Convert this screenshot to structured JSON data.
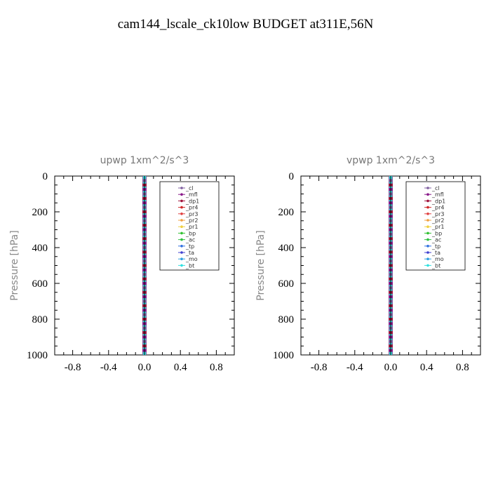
{
  "figure": {
    "title": "cam144_lscale_ck10low  BUDGET at311E,56N"
  },
  "chart_data": [
    {
      "type": "line",
      "title": "upwp   1xm^2/s^3",
      "xlabel": "",
      "ylabel": "Pressure [hPa]",
      "xlim": [
        -1.0,
        1.0
      ],
      "ylim": [
        1000,
        0
      ],
      "y_inverted": true,
      "xticks": [
        "-0.8",
        "-0.4",
        "0.0",
        "0.4",
        "0.8"
      ],
      "xtick_values": [
        -0.8,
        -0.4,
        0.0,
        0.4,
        0.8
      ],
      "yticks": [
        "0",
        "200",
        "400",
        "600",
        "800",
        "1000"
      ],
      "ytick_values": [
        0,
        200,
        400,
        600,
        800,
        1000
      ],
      "grid": false,
      "legend_position": "top-right",
      "pressure_levels": [
        0,
        25,
        50,
        75,
        100,
        125,
        150,
        175,
        200,
        225,
        250,
        275,
        300,
        325,
        350,
        375,
        400,
        425,
        450,
        475,
        500,
        525,
        550,
        575,
        600,
        625,
        650,
        675,
        700,
        725,
        750,
        775,
        800,
        825,
        850,
        875,
        900,
        925,
        950,
        975,
        1000
      ],
      "series": [
        {
          "name": "_cl",
          "color": "#7f5fa0",
          "marker": "cross",
          "value": 0.0
        },
        {
          "name": "_mfl",
          "color": "#8a1a8a",
          "marker": "triangle-right",
          "value": 0.0
        },
        {
          "name": "_dp1",
          "color": "#a0143c",
          "marker": "circle-filled",
          "value": 0.0
        },
        {
          "name": "_pr4",
          "color": "#d02828",
          "marker": "circle",
          "value": 0.0
        },
        {
          "name": "_pr3",
          "color": "#e04040",
          "marker": "triangle-down",
          "value": 0.0
        },
        {
          "name": "_pr2",
          "color": "#f0a040",
          "marker": "triangle",
          "value": 0.0
        },
        {
          "name": "_pr1",
          "color": "#f0d040",
          "marker": "square",
          "value": 0.0
        },
        {
          "name": "_bp",
          "color": "#30c030",
          "marker": "x",
          "value": 0.0
        },
        {
          "name": "_ac",
          "color": "#30c040",
          "marker": "circle",
          "value": 0.0
        },
        {
          "name": "_tp",
          "color": "#3070e0",
          "marker": "star",
          "value": 0.0
        },
        {
          "name": "_ta",
          "color": "#4040d0",
          "marker": "triangle-right",
          "value": 0.0
        },
        {
          "name": "_mo",
          "color": "#30a0e0",
          "marker": "dash",
          "value": 0.0
        },
        {
          "name": "_bt",
          "color": "#30e0e0",
          "marker": "diamond",
          "value": 0.0
        }
      ]
    },
    {
      "type": "line",
      "title": "vpwp   1xm^2/s^3",
      "xlabel": "",
      "ylabel": "Pressure [hPa]",
      "xlim": [
        -1.0,
        1.0
      ],
      "ylim": [
        1000,
        0
      ],
      "y_inverted": true,
      "xticks": [
        "-0.8",
        "-0.4",
        "0.0",
        "0.4",
        "0.8"
      ],
      "xtick_values": [
        -0.8,
        -0.4,
        0.0,
        0.4,
        0.8
      ],
      "yticks": [
        "0",
        "200",
        "400",
        "600",
        "800",
        "1000"
      ],
      "ytick_values": [
        0,
        200,
        400,
        600,
        800,
        1000
      ],
      "grid": false,
      "legend_position": "top-right",
      "pressure_levels": [
        0,
        25,
        50,
        75,
        100,
        125,
        150,
        175,
        200,
        225,
        250,
        275,
        300,
        325,
        350,
        375,
        400,
        425,
        450,
        475,
        500,
        525,
        550,
        575,
        600,
        625,
        650,
        675,
        700,
        725,
        750,
        775,
        800,
        825,
        850,
        875,
        900,
        925,
        950,
        975,
        1000
      ],
      "series": [
        {
          "name": "_cl",
          "color": "#7f5fa0",
          "marker": "cross",
          "value": 0.0
        },
        {
          "name": "_mfl",
          "color": "#8a1a8a",
          "marker": "triangle-right",
          "value": 0.0
        },
        {
          "name": "_dp1",
          "color": "#a0143c",
          "marker": "circle-filled",
          "value": 0.0
        },
        {
          "name": "_pr4",
          "color": "#d02828",
          "marker": "circle",
          "value": 0.0
        },
        {
          "name": "_pr3",
          "color": "#e04040",
          "marker": "triangle-down",
          "value": 0.0
        },
        {
          "name": "_pr2",
          "color": "#f0a040",
          "marker": "triangle",
          "value": 0.0
        },
        {
          "name": "_pr1",
          "color": "#f0d040",
          "marker": "square",
          "value": 0.0
        },
        {
          "name": "_bp",
          "color": "#30c030",
          "marker": "x",
          "value": 0.0
        },
        {
          "name": "_ac",
          "color": "#30c040",
          "marker": "circle",
          "value": 0.0
        },
        {
          "name": "_tp",
          "color": "#3070e0",
          "marker": "star",
          "value": 0.0
        },
        {
          "name": "_ta",
          "color": "#4040d0",
          "marker": "triangle-right",
          "value": 0.0
        },
        {
          "name": "_mo",
          "color": "#30a0e0",
          "marker": "dash",
          "value": 0.0
        },
        {
          "name": "_bt",
          "color": "#30e0e0",
          "marker": "diamond",
          "value": 0.0
        }
      ]
    }
  ]
}
